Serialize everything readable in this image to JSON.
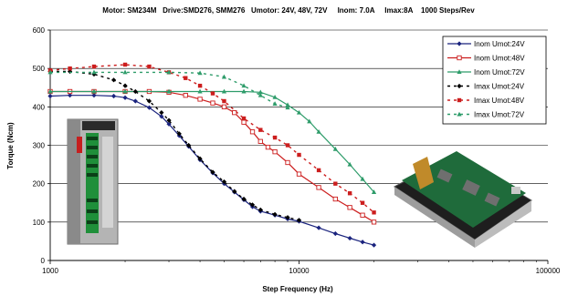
{
  "chart_data": {
    "type": "line",
    "title": "Motor: SM234M   Drive:SMD276, SMM276   Umotor: 24V, 48V, 72V     Inom: 7.0A     Imax:8A    1000 Steps/Rev",
    "xlabel": "Step Frequency (Hz)",
    "ylabel": "Torque (Ncm)",
    "xscale": "log",
    "xlim": [
      1000,
      100000
    ],
    "ylim": [
      0,
      600
    ],
    "x_ticks": [
      1000,
      10000,
      100000
    ],
    "x_tick_labels": [
      "1000",
      "10000",
      "100000"
    ],
    "y_ticks": [
      0,
      100,
      200,
      300,
      400,
      500,
      600
    ],
    "y_tick_labels": [
      "0",
      "100",
      "200",
      "300",
      "400",
      "500",
      "600"
    ],
    "grid": "horizontal",
    "legend_position": "top-right",
    "series": [
      {
        "name": "Inom Umot:24V",
        "color": "#1a237e",
        "dash": "solid",
        "marker": "diamond",
        "x": [
          1000,
          1200,
          1500,
          1800,
          2000,
          2200,
          2500,
          2800,
          3000,
          3300,
          3600,
          4000,
          4500,
          5000,
          5500,
          6000,
          6500,
          7000,
          8000,
          9000,
          10000,
          12000,
          14000,
          16000,
          18000,
          20000
        ],
        "y": [
          428,
          430,
          430,
          428,
          424,
          415,
          398,
          375,
          355,
          325,
          297,
          262,
          228,
          200,
          178,
          158,
          140,
          128,
          118,
          108,
          102,
          85,
          70,
          58,
          48,
          40
        ]
      },
      {
        "name": "Inom Umot:48V",
        "color": "#cc1e1e",
        "dash": "solid",
        "marker": "square-open",
        "x": [
          1000,
          1200,
          1500,
          2000,
          2500,
          3000,
          3500,
          4000,
          4500,
          5000,
          5500,
          6000,
          6500,
          7000,
          7500,
          8000,
          9000,
          10000,
          12000,
          14000,
          16000,
          18000,
          20000
        ],
        "y": [
          440,
          440,
          440,
          440,
          440,
          438,
          430,
          420,
          410,
          400,
          385,
          360,
          335,
          310,
          295,
          283,
          255,
          225,
          190,
          160,
          138,
          118,
          100
        ]
      },
      {
        "name": "Inom Umot:72V",
        "color": "#2e9c6a",
        "dash": "solid",
        "marker": "triangle",
        "x": [
          1000,
          1500,
          2000,
          3000,
          4000,
          5000,
          6000,
          7000,
          8000,
          9000,
          10000,
          11000,
          12000,
          14000,
          16000,
          18000,
          20000
        ],
        "y": [
          440,
          440,
          440,
          440,
          440,
          440,
          440,
          438,
          425,
          405,
          385,
          362,
          335,
          290,
          250,
          212,
          178
        ]
      },
      {
        "name": "Imax Umot:24V",
        "color": "#000000",
        "dash": "dashed",
        "marker": "diamond",
        "x": [
          1000,
          1200,
          1500,
          1800,
          2000,
          2200,
          2500,
          2800,
          3000,
          3300,
          3600,
          4000,
          4500,
          5000,
          5500,
          6000,
          6500,
          7000,
          8000,
          9000,
          10000
        ],
        "y": [
          492,
          492,
          485,
          470,
          455,
          440,
          415,
          385,
          365,
          330,
          300,
          265,
          230,
          205,
          180,
          160,
          145,
          132,
          120,
          112,
          105
        ]
      },
      {
        "name": "Imax Umot:48V",
        "color": "#cc1e1e",
        "dash": "dashed",
        "marker": "square",
        "x": [
          1000,
          1200,
          1500,
          2000,
          2500,
          3000,
          3500,
          4000,
          4500,
          5000,
          6000,
          7000,
          8000,
          9000,
          10000,
          12000,
          14000,
          16000,
          18000,
          20000
        ],
        "y": [
          495,
          500,
          505,
          510,
          505,
          490,
          475,
          455,
          435,
          415,
          370,
          340,
          320,
          300,
          275,
          235,
          200,
          175,
          150,
          125
        ]
      },
      {
        "name": "Imax Umot:72V",
        "color": "#2e9c6a",
        "dash": "dashed",
        "marker": "triangle",
        "x": [
          1000,
          1500,
          2000,
          3000,
          4000,
          5000,
          6000,
          7000,
          8000,
          9000
        ],
        "y": [
          490,
          490,
          490,
          490,
          488,
          478,
          455,
          430,
          408,
          398
        ]
      }
    ]
  },
  "images": {
    "left_product": "stepper motor drive module (photo)",
    "right_product": "stepper drive circuit board (photo)"
  }
}
